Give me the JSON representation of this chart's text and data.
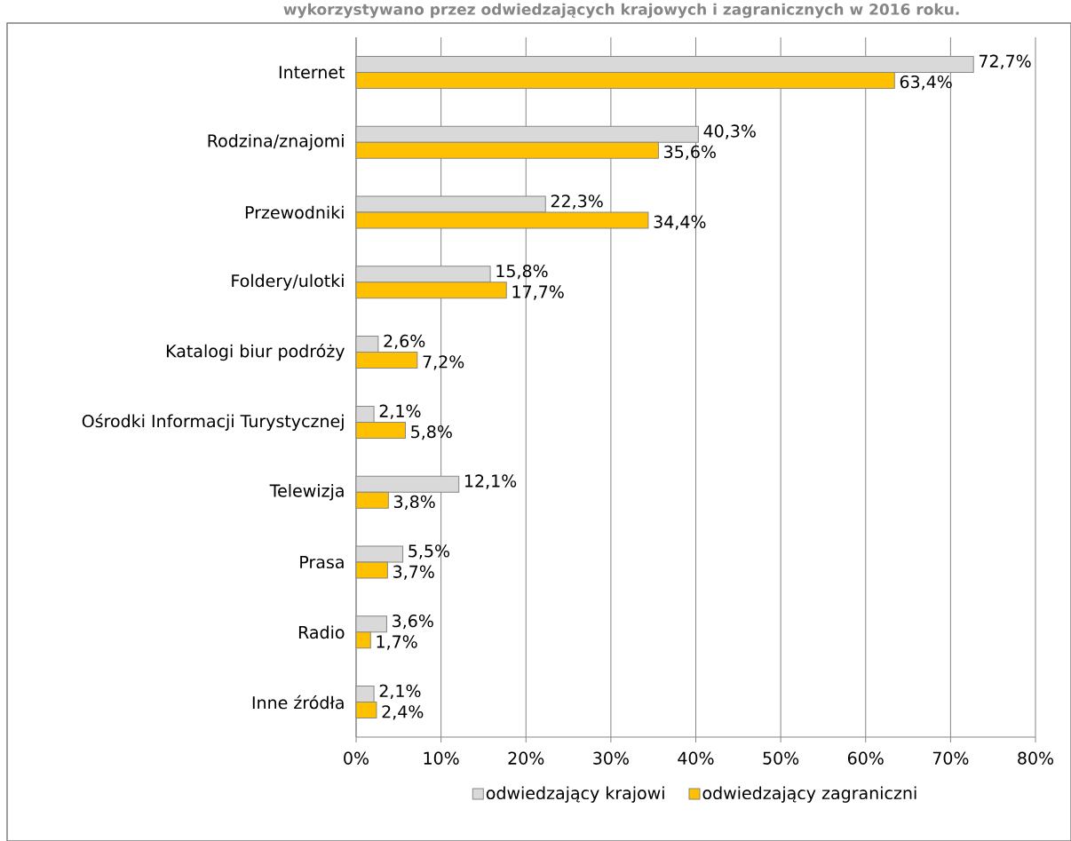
{
  "chart_data": {
    "type": "bar",
    "orientation": "horizontal",
    "title": "wykorzystywano przez odwiedzających krajowych i zagranicznych w 2016 roku.",
    "categories": [
      "Internet",
      "Rodzina/znajomi",
      "Przewodniki",
      "Foldery/ulotki",
      "Katalogi biur podróży",
      "Ośrodki Informacji Turystycznej",
      "Telewizja",
      "Prasa",
      "Radio",
      "Inne źródła"
    ],
    "series": [
      {
        "name": "odwiedzający krajowi",
        "color": "#d9d9d9",
        "values": [
          72.7,
          40.3,
          22.3,
          15.8,
          2.6,
          2.1,
          12.1,
          5.5,
          3.6,
          2.1
        ],
        "value_labels": [
          "72,7%",
          "40,3%",
          "22,3%",
          "15,8%",
          "2,6%",
          "2,1%",
          "12,1%",
          "5,5%",
          "3,6%",
          "2,1%"
        ]
      },
      {
        "name": "odwiedzający zagraniczni",
        "color": "#ffc000",
        "values": [
          63.4,
          35.6,
          34.4,
          17.7,
          7.2,
          5.8,
          3.8,
          3.7,
          1.7,
          2.4
        ],
        "value_labels": [
          "63,4%",
          "35,6%",
          "34,4%",
          "17,7%",
          "7,2%",
          "5,8%",
          "3,8%",
          "3,7%",
          "1,7%",
          "2,4%"
        ]
      }
    ],
    "xlim": [
      0,
      80
    ],
    "xticks": [
      {
        "value": 0,
        "label": "0%"
      },
      {
        "value": 10,
        "label": "10%"
      },
      {
        "value": 20,
        "label": "20%"
      },
      {
        "value": 30,
        "label": "30%"
      },
      {
        "value": 40,
        "label": "40%"
      },
      {
        "value": 50,
        "label": "50%"
      },
      {
        "value": 60,
        "label": "60%"
      },
      {
        "value": 70,
        "label": "70%"
      },
      {
        "value": 80,
        "label": "80%"
      }
    ],
    "grid": "x",
    "legend": "bottom"
  }
}
